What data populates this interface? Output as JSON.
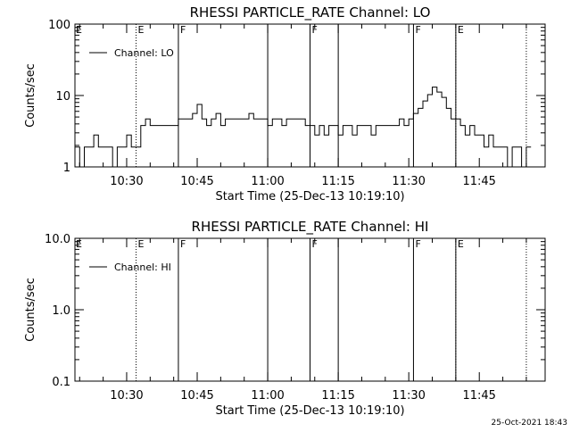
{
  "footer": {
    "timestamp": "25-Oct-2021 18:43"
  },
  "chart_data": [
    {
      "type": "line",
      "title": "RHESSI PARTICLE_RATE Channel: LO",
      "xlabel": "Start Time (25-Dec-13 10:19:10)",
      "ylabel": "Counts/sec",
      "yscale": "log",
      "xlim": [
        "10:19",
        "11:59"
      ],
      "ylim": [
        1,
        100
      ],
      "x_ticks": [
        "10:30",
        "10:45",
        "11:00",
        "11:15",
        "11:30",
        "11:45"
      ],
      "y_ticks": [
        "1",
        "10",
        "100"
      ],
      "legend": {
        "label": "Channel: LO",
        "placement": "top-left"
      },
      "markers": [
        {
          "time": "10:32",
          "label": "E",
          "style": "dotted"
        },
        {
          "time": "10:41",
          "label": "F",
          "style": "solid"
        },
        {
          "time": "11:00",
          "label": "",
          "style": "solid"
        },
        {
          "time": "11:09",
          "label": "F",
          "style": "solid"
        },
        {
          "time": "11:15",
          "label": "",
          "style": "solid"
        },
        {
          "time": "11:31",
          "label": "F",
          "style": "solid"
        },
        {
          "time": "11:40",
          "label": "E",
          "style": "solid"
        },
        {
          "time": "11:40",
          "label": "",
          "style": "dotted"
        },
        {
          "time": "11:55",
          "label": "",
          "style": "dotted"
        }
      ],
      "series": [
        {
          "x": [
            "10:19",
            "10:20",
            "10:21",
            "10:22",
            "10:23",
            "10:24",
            "10:25",
            "10:26",
            "10:27",
            "10:28",
            "10:29",
            "10:30",
            "10:31",
            "10:32",
            "10:33",
            "10:34",
            "10:35",
            "10:36",
            "10:37",
            "10:38",
            "10:39",
            "10:40",
            "10:41",
            "10:42",
            "10:43",
            "10:44",
            "10:45",
            "10:46",
            "10:47",
            "10:48",
            "10:49",
            "10:50",
            "10:51",
            "10:52",
            "10:53",
            "10:54",
            "10:55",
            "10:56",
            "10:57",
            "10:58",
            "10:59",
            "11:00",
            "11:01",
            "11:02",
            "11:03",
            "11:04",
            "11:05",
            "11:06",
            "11:07",
            "11:08",
            "11:09",
            "11:10",
            "11:11",
            "11:12",
            "11:13",
            "11:14",
            "11:15",
            "11:16",
            "11:17",
            "11:18",
            "11:19",
            "11:20",
            "11:21",
            "11:22",
            "11:23",
            "11:24",
            "11:25",
            "11:26",
            "11:27",
            "11:28",
            "11:29",
            "11:30",
            "11:31",
            "11:32",
            "11:33",
            "11:34",
            "11:35",
            "11:36",
            "11:37",
            "11:38",
            "11:39",
            "11:40",
            "11:41",
            "11:42",
            "11:43",
            "11:44",
            "11:45",
            "11:46",
            "11:47",
            "11:48",
            "11:49",
            "11:50",
            "11:51",
            "11:52",
            "11:53",
            "11:54",
            "11:55"
          ],
          "y": [
            1.9,
            1.0,
            1.9,
            1.9,
            2.8,
            1.9,
            1.9,
            1.9,
            1.0,
            1.9,
            1.9,
            2.8,
            1.9,
            1.9,
            3.8,
            4.7,
            3.8,
            3.8,
            3.8,
            3.8,
            3.8,
            3.8,
            4.7,
            4.7,
            4.7,
            5.6,
            7.5,
            4.7,
            3.8,
            4.7,
            5.6,
            3.8,
            4.7,
            4.7,
            4.7,
            4.7,
            4.7,
            5.6,
            4.7,
            4.7,
            4.7,
            3.8,
            4.7,
            4.7,
            3.8,
            4.7,
            4.7,
            4.7,
            4.7,
            3.8,
            3.8,
            2.8,
            3.8,
            2.8,
            3.8,
            3.8,
            2.8,
            3.8,
            3.8,
            2.8,
            3.8,
            3.8,
            3.8,
            2.8,
            3.8,
            3.8,
            3.8,
            3.8,
            3.8,
            4.7,
            3.8,
            4.7,
            5.6,
            6.6,
            8.4,
            10.3,
            13.1,
            11.2,
            9.4,
            6.6,
            4.7,
            4.7,
            3.8,
            2.8,
            3.8,
            2.8,
            2.8,
            1.9,
            2.8,
            1.9,
            1.9,
            1.9,
            1.0,
            1.9,
            1.9,
            1.0,
            1.9
          ]
        }
      ]
    },
    {
      "type": "line",
      "title": "RHESSI PARTICLE_RATE Channel: HI",
      "xlabel": "Start Time (25-Dec-13 10:19:10)",
      "ylabel": "Counts/sec",
      "yscale": "log",
      "xlim": [
        "10:19",
        "11:59"
      ],
      "ylim": [
        0.1,
        10.0
      ],
      "x_ticks": [
        "10:30",
        "10:45",
        "11:00",
        "11:15",
        "11:30",
        "11:45"
      ],
      "y_ticks": [
        "0.1",
        "1.0",
        "10.0"
      ],
      "legend": {
        "label": "Channel: HI",
        "placement": "top-left"
      },
      "markers": [
        {
          "time": "10:32",
          "label": "E",
          "style": "dotted"
        },
        {
          "time": "10:41",
          "label": "F",
          "style": "solid"
        },
        {
          "time": "11:00",
          "label": "",
          "style": "solid"
        },
        {
          "time": "11:09",
          "label": "F",
          "style": "solid"
        },
        {
          "time": "11:15",
          "label": "",
          "style": "solid"
        },
        {
          "time": "11:31",
          "label": "F",
          "style": "solid"
        },
        {
          "time": "11:40",
          "label": "E",
          "style": "solid"
        },
        {
          "time": "11:40",
          "label": "",
          "style": "dotted"
        },
        {
          "time": "11:55",
          "label": "",
          "style": "dotted"
        }
      ],
      "series": []
    }
  ]
}
